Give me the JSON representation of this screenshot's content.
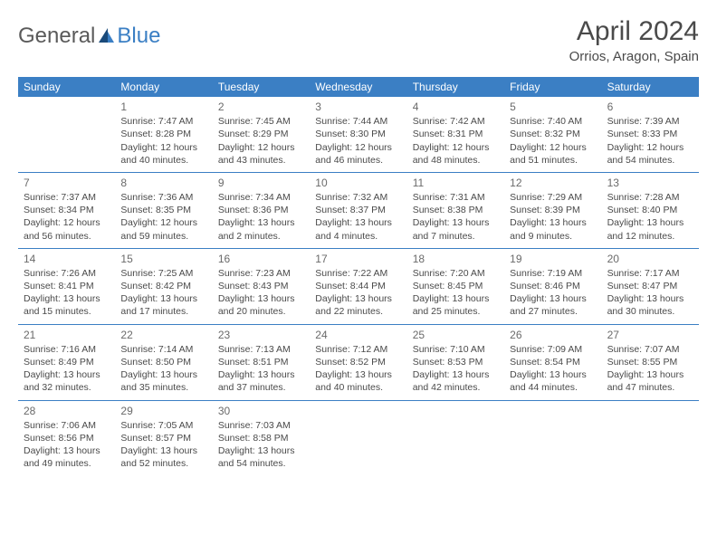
{
  "logo": {
    "general": "General",
    "blue": "Blue"
  },
  "title": "April 2024",
  "location": "Orrios, Aragon, Spain",
  "colors": {
    "header_bg": "#3b7fc4",
    "header_text": "#ffffff",
    "border": "#3b7fc4",
    "text": "#4a4a4a",
    "logo_blue": "#3b7fc4",
    "logo_dark": "#1a4a7a"
  },
  "day_names": [
    "Sunday",
    "Monday",
    "Tuesday",
    "Wednesday",
    "Thursday",
    "Friday",
    "Saturday"
  ],
  "weeks": [
    [
      null,
      {
        "n": "1",
        "sr": "Sunrise: 7:47 AM",
        "ss": "Sunset: 8:28 PM",
        "d1": "Daylight: 12 hours",
        "d2": "and 40 minutes."
      },
      {
        "n": "2",
        "sr": "Sunrise: 7:45 AM",
        "ss": "Sunset: 8:29 PM",
        "d1": "Daylight: 12 hours",
        "d2": "and 43 minutes."
      },
      {
        "n": "3",
        "sr": "Sunrise: 7:44 AM",
        "ss": "Sunset: 8:30 PM",
        "d1": "Daylight: 12 hours",
        "d2": "and 46 minutes."
      },
      {
        "n": "4",
        "sr": "Sunrise: 7:42 AM",
        "ss": "Sunset: 8:31 PM",
        "d1": "Daylight: 12 hours",
        "d2": "and 48 minutes."
      },
      {
        "n": "5",
        "sr": "Sunrise: 7:40 AM",
        "ss": "Sunset: 8:32 PM",
        "d1": "Daylight: 12 hours",
        "d2": "and 51 minutes."
      },
      {
        "n": "6",
        "sr": "Sunrise: 7:39 AM",
        "ss": "Sunset: 8:33 PM",
        "d1": "Daylight: 12 hours",
        "d2": "and 54 minutes."
      }
    ],
    [
      {
        "n": "7",
        "sr": "Sunrise: 7:37 AM",
        "ss": "Sunset: 8:34 PM",
        "d1": "Daylight: 12 hours",
        "d2": "and 56 minutes."
      },
      {
        "n": "8",
        "sr": "Sunrise: 7:36 AM",
        "ss": "Sunset: 8:35 PM",
        "d1": "Daylight: 12 hours",
        "d2": "and 59 minutes."
      },
      {
        "n": "9",
        "sr": "Sunrise: 7:34 AM",
        "ss": "Sunset: 8:36 PM",
        "d1": "Daylight: 13 hours",
        "d2": "and 2 minutes."
      },
      {
        "n": "10",
        "sr": "Sunrise: 7:32 AM",
        "ss": "Sunset: 8:37 PM",
        "d1": "Daylight: 13 hours",
        "d2": "and 4 minutes."
      },
      {
        "n": "11",
        "sr": "Sunrise: 7:31 AM",
        "ss": "Sunset: 8:38 PM",
        "d1": "Daylight: 13 hours",
        "d2": "and 7 minutes."
      },
      {
        "n": "12",
        "sr": "Sunrise: 7:29 AM",
        "ss": "Sunset: 8:39 PM",
        "d1": "Daylight: 13 hours",
        "d2": "and 9 minutes."
      },
      {
        "n": "13",
        "sr": "Sunrise: 7:28 AM",
        "ss": "Sunset: 8:40 PM",
        "d1": "Daylight: 13 hours",
        "d2": "and 12 minutes."
      }
    ],
    [
      {
        "n": "14",
        "sr": "Sunrise: 7:26 AM",
        "ss": "Sunset: 8:41 PM",
        "d1": "Daylight: 13 hours",
        "d2": "and 15 minutes."
      },
      {
        "n": "15",
        "sr": "Sunrise: 7:25 AM",
        "ss": "Sunset: 8:42 PM",
        "d1": "Daylight: 13 hours",
        "d2": "and 17 minutes."
      },
      {
        "n": "16",
        "sr": "Sunrise: 7:23 AM",
        "ss": "Sunset: 8:43 PM",
        "d1": "Daylight: 13 hours",
        "d2": "and 20 minutes."
      },
      {
        "n": "17",
        "sr": "Sunrise: 7:22 AM",
        "ss": "Sunset: 8:44 PM",
        "d1": "Daylight: 13 hours",
        "d2": "and 22 minutes."
      },
      {
        "n": "18",
        "sr": "Sunrise: 7:20 AM",
        "ss": "Sunset: 8:45 PM",
        "d1": "Daylight: 13 hours",
        "d2": "and 25 minutes."
      },
      {
        "n": "19",
        "sr": "Sunrise: 7:19 AM",
        "ss": "Sunset: 8:46 PM",
        "d1": "Daylight: 13 hours",
        "d2": "and 27 minutes."
      },
      {
        "n": "20",
        "sr": "Sunrise: 7:17 AM",
        "ss": "Sunset: 8:47 PM",
        "d1": "Daylight: 13 hours",
        "d2": "and 30 minutes."
      }
    ],
    [
      {
        "n": "21",
        "sr": "Sunrise: 7:16 AM",
        "ss": "Sunset: 8:49 PM",
        "d1": "Daylight: 13 hours",
        "d2": "and 32 minutes."
      },
      {
        "n": "22",
        "sr": "Sunrise: 7:14 AM",
        "ss": "Sunset: 8:50 PM",
        "d1": "Daylight: 13 hours",
        "d2": "and 35 minutes."
      },
      {
        "n": "23",
        "sr": "Sunrise: 7:13 AM",
        "ss": "Sunset: 8:51 PM",
        "d1": "Daylight: 13 hours",
        "d2": "and 37 minutes."
      },
      {
        "n": "24",
        "sr": "Sunrise: 7:12 AM",
        "ss": "Sunset: 8:52 PM",
        "d1": "Daylight: 13 hours",
        "d2": "and 40 minutes."
      },
      {
        "n": "25",
        "sr": "Sunrise: 7:10 AM",
        "ss": "Sunset: 8:53 PM",
        "d1": "Daylight: 13 hours",
        "d2": "and 42 minutes."
      },
      {
        "n": "26",
        "sr": "Sunrise: 7:09 AM",
        "ss": "Sunset: 8:54 PM",
        "d1": "Daylight: 13 hours",
        "d2": "and 44 minutes."
      },
      {
        "n": "27",
        "sr": "Sunrise: 7:07 AM",
        "ss": "Sunset: 8:55 PM",
        "d1": "Daylight: 13 hours",
        "d2": "and 47 minutes."
      }
    ],
    [
      {
        "n": "28",
        "sr": "Sunrise: 7:06 AM",
        "ss": "Sunset: 8:56 PM",
        "d1": "Daylight: 13 hours",
        "d2": "and 49 minutes."
      },
      {
        "n": "29",
        "sr": "Sunrise: 7:05 AM",
        "ss": "Sunset: 8:57 PM",
        "d1": "Daylight: 13 hours",
        "d2": "and 52 minutes."
      },
      {
        "n": "30",
        "sr": "Sunrise: 7:03 AM",
        "ss": "Sunset: 8:58 PM",
        "d1": "Daylight: 13 hours",
        "d2": "and 54 minutes."
      },
      null,
      null,
      null,
      null
    ]
  ]
}
